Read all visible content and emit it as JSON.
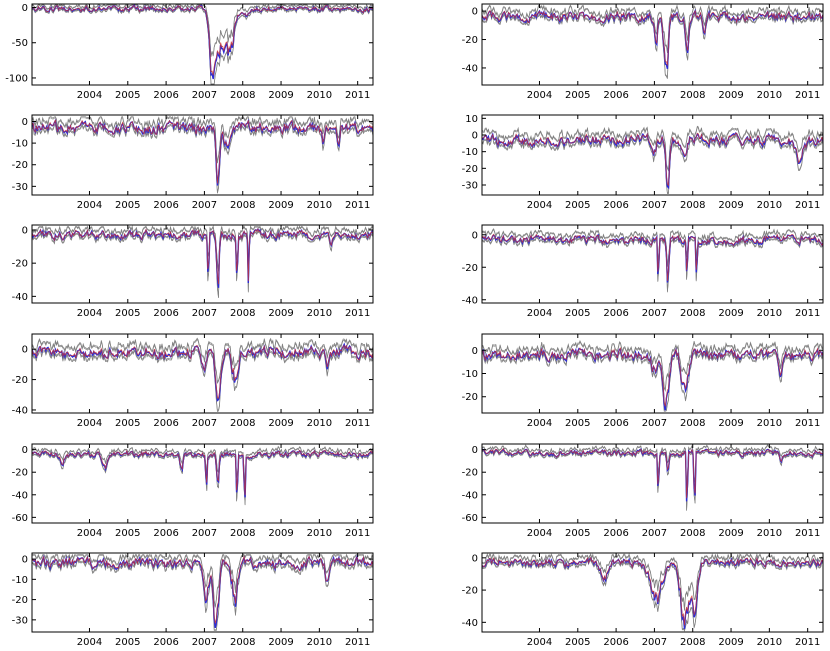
{
  "colors": {
    "band": "#808080",
    "blue": "#2b2bd6",
    "red": "#c83232",
    "frame": "#000000"
  },
  "chart_data": [
    {
      "type": "line",
      "xlim": [
        2003.0,
        2011.9
      ],
      "xticks": [
        "2004",
        "2005",
        "2006",
        "2007",
        "2008",
        "2009",
        "2010",
        "2011"
      ],
      "yticks": [
        -100,
        -50,
        0
      ],
      "ylim": [
        -110,
        5
      ],
      "baseline": -2,
      "noise": 3,
      "events": [
        [
          2007.72,
          -90,
          0.1
        ],
        [
          2007.95,
          -60,
          0.25
        ],
        [
          2008.2,
          -35,
          0.12
        ],
        [
          2008.55,
          -8,
          0.2
        ]
      ]
    },
    {
      "type": "line",
      "xlim": [
        2003.0,
        2011.9
      ],
      "xticks": [
        "2004",
        "2005",
        "2006",
        "2007",
        "2008",
        "2009",
        "2010",
        "2011"
      ],
      "yticks": [
        -40,
        -20,
        0
      ],
      "ylim": [
        -52,
        5
      ],
      "baseline": -4,
      "noise": 2.5,
      "events": [
        [
          2007.8,
          -45,
          0.07
        ],
        [
          2007.55,
          -20,
          0.05
        ],
        [
          2008.35,
          -25,
          0.06
        ],
        [
          2008.8,
          -15,
          0.05
        ]
      ]
    },
    {
      "type": "line",
      "xlim": [
        2003.0,
        2011.9
      ],
      "xticks": [
        "2004",
        "2005",
        "2006",
        "2007",
        "2008",
        "2009",
        "2010",
        "2011"
      ],
      "yticks": [
        -30,
        -20,
        -10,
        0
      ],
      "ylim": [
        -34,
        3
      ],
      "baseline": -3,
      "noise": 2,
      "events": [
        [
          2007.85,
          -28,
          0.06
        ],
        [
          2008.1,
          -10,
          0.1
        ],
        [
          2010.6,
          -8,
          0.04
        ],
        [
          2011.0,
          -6,
          0.05
        ]
      ]
    },
    {
      "type": "line",
      "xlim": [
        2003.0,
        2011.9
      ],
      "xticks": [
        "2004",
        "2005",
        "2006",
        "2007",
        "2008",
        "2009",
        "2010",
        "2011"
      ],
      "yticks": [
        -30,
        -20,
        -10,
        0,
        10
      ],
      "ylim": [
        -36,
        12
      ],
      "baseline": -3,
      "noise": 2.5,
      "events": [
        [
          2007.85,
          -30,
          0.06
        ],
        [
          2007.5,
          -10,
          0.05
        ],
        [
          2008.3,
          -12,
          0.08
        ],
        [
          2011.3,
          -12,
          0.12
        ]
      ]
    },
    {
      "type": "line",
      "xlim": [
        2003.0,
        2011.9
      ],
      "xticks": [
        "2004",
        "2005",
        "2006",
        "2007",
        "2008",
        "2009",
        "2010",
        "2011"
      ],
      "yticks": [
        -40,
        -20,
        0
      ],
      "ylim": [
        -44,
        3
      ],
      "baseline": -3,
      "noise": 2,
      "events": [
        [
          2007.6,
          -35,
          0.02
        ],
        [
          2007.85,
          -35,
          0.04
        ],
        [
          2008.35,
          -30,
          0.02
        ],
        [
          2008.65,
          -30,
          0.02
        ],
        [
          2010.8,
          -10,
          0.05
        ]
      ]
    },
    {
      "type": "line",
      "xlim": [
        2003.0,
        2011.9
      ],
      "xticks": [
        "2004",
        "2005",
        "2006",
        "2007",
        "2008",
        "2009",
        "2010",
        "2011"
      ],
      "yticks": [
        -40,
        -20,
        0
      ],
      "ylim": [
        -42,
        6
      ],
      "baseline": -3,
      "noise": 2,
      "events": [
        [
          2007.6,
          -32,
          0.02
        ],
        [
          2007.85,
          -28,
          0.04
        ],
        [
          2008.35,
          -30,
          0.02
        ],
        [
          2008.6,
          -30,
          0.02
        ]
      ]
    },
    {
      "type": "line",
      "xlim": [
        2003.0,
        2011.9
      ],
      "xticks": [
        "2004",
        "2005",
        "2006",
        "2007",
        "2008",
        "2009",
        "2010",
        "2011"
      ],
      "yticks": [
        -40,
        -20,
        0
      ],
      "ylim": [
        -42,
        10
      ],
      "baseline": -2,
      "noise": 3,
      "events": [
        [
          2007.85,
          -33,
          0.08
        ],
        [
          2008.3,
          -20,
          0.1
        ],
        [
          2007.5,
          -12,
          0.08
        ],
        [
          2010.7,
          -10,
          0.06
        ]
      ]
    },
    {
      "type": "line",
      "xlim": [
        2003.0,
        2011.9
      ],
      "xticks": [
        "2004",
        "2005",
        "2006",
        "2007",
        "2008",
        "2009",
        "2010",
        "2011"
      ],
      "yticks": [
        -20,
        -10,
        0
      ],
      "ylim": [
        -27,
        7
      ],
      "baseline": -2,
      "noise": 1.8,
      "events": [
        [
          2007.8,
          -22,
          0.1
        ],
        [
          2008.3,
          -18,
          0.12
        ],
        [
          2007.5,
          -8,
          0.1
        ],
        [
          2010.8,
          -8,
          0.06
        ]
      ]
    },
    {
      "type": "line",
      "xlim": [
        2003.0,
        2011.9
      ],
      "xticks": [
        "2004",
        "2005",
        "2006",
        "2007",
        "2008",
        "2009",
        "2010",
        "2011"
      ],
      "yticks": [
        -60,
        -40,
        -20,
        0
      ],
      "ylim": [
        -65,
        5
      ],
      "baseline": -4,
      "noise": 2,
      "events": [
        [
          2007.55,
          -40,
          0.02
        ],
        [
          2007.85,
          -25,
          0.05
        ],
        [
          2008.35,
          -55,
          0.02
        ],
        [
          2008.55,
          -50,
          0.02
        ],
        [
          2003.8,
          -12,
          0.08
        ],
        [
          2004.9,
          -12,
          0.08
        ],
        [
          2006.9,
          -15,
          0.05
        ]
      ]
    },
    {
      "type": "line",
      "xlim": [
        2003.0,
        2011.9
      ],
      "xticks": [
        "2004",
        "2005",
        "2006",
        "2007",
        "2008",
        "2009",
        "2010",
        "2011"
      ],
      "yticks": [
        -60,
        -40,
        -20,
        0
      ],
      "ylim": [
        -65,
        5
      ],
      "baseline": -3,
      "noise": 2,
      "events": [
        [
          2007.6,
          -45,
          0.02
        ],
        [
          2007.85,
          -20,
          0.04
        ],
        [
          2008.35,
          -55,
          0.02
        ],
        [
          2008.55,
          -58,
          0.02
        ],
        [
          2010.8,
          -8,
          0.05
        ]
      ]
    },
    {
      "type": "line",
      "xlim": [
        2003.0,
        2011.9
      ],
      "xticks": [
        "2004",
        "2005",
        "2006",
        "2007",
        "2008",
        "2009",
        "2010",
        "2011"
      ],
      "yticks": [
        -30,
        -20,
        -10,
        0
      ],
      "ylim": [
        -36,
        3
      ],
      "baseline": -2,
      "noise": 2,
      "events": [
        [
          2007.8,
          -32,
          0.1
        ],
        [
          2007.55,
          -20,
          0.08
        ],
        [
          2008.3,
          -18,
          0.1
        ],
        [
          2010.7,
          -8,
          0.06
        ]
      ]
    },
    {
      "type": "line",
      "xlim": [
        2003.0,
        2011.9
      ],
      "xticks": [
        "2004",
        "2005",
        "2006",
        "2007",
        "2008",
        "2009",
        "2010",
        "2011"
      ],
      "yticks": [
        -40,
        -20,
        0
      ],
      "ylim": [
        -46,
        3
      ],
      "baseline": -3,
      "noise": 2,
      "events": [
        [
          2007.55,
          -25,
          0.2
        ],
        [
          2008.3,
          -38,
          0.15
        ],
        [
          2008.55,
          -30,
          0.1
        ],
        [
          2006.2,
          -10,
          0.15
        ]
      ]
    }
  ]
}
